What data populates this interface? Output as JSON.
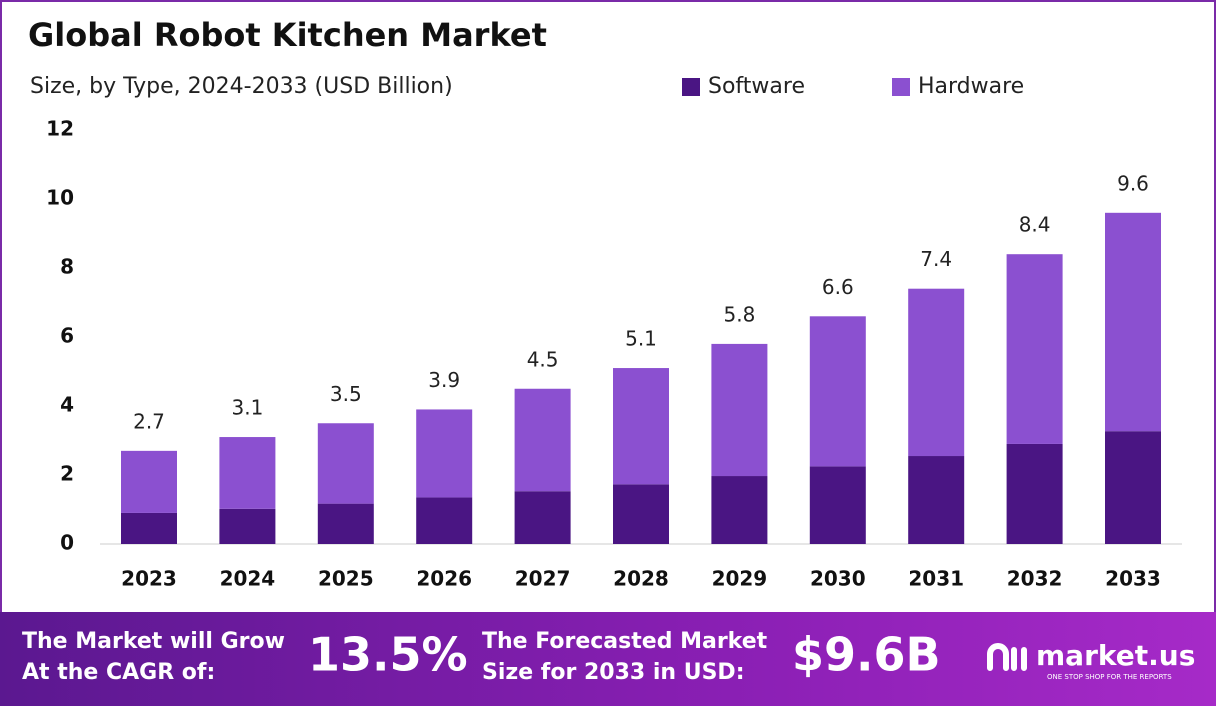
{
  "chart_data": {
    "type": "bar",
    "stacked": true,
    "title": "Global Robot Kitchen Market",
    "subtitle": "Size, by Type, 2024-2033 (USD Billion)",
    "categories": [
      "2023",
      "2024",
      "2025",
      "2026",
      "2027",
      "2028",
      "2029",
      "2030",
      "2031",
      "2032",
      "2033"
    ],
    "series": [
      {
        "name": "Software",
        "color": "#4a1583",
        "values": [
          0.9,
          1.02,
          1.17,
          1.35,
          1.53,
          1.73,
          1.97,
          2.25,
          2.55,
          2.9,
          3.27
        ]
      },
      {
        "name": "Hardware",
        "color": "#8b50d0",
        "values": [
          1.8,
          2.08,
          2.33,
          2.55,
          2.97,
          3.37,
          3.83,
          4.35,
          4.85,
          5.5,
          6.33
        ]
      }
    ],
    "totals": [
      2.7,
      3.1,
      3.5,
      3.9,
      4.5,
      5.1,
      5.8,
      6.6,
      7.4,
      8.4,
      9.6
    ],
    "ylim": [
      0,
      12
    ],
    "yticks": [
      0,
      2,
      4,
      6,
      8,
      10,
      12
    ],
    "grid": false,
    "legend": "top-right"
  },
  "banner": {
    "cagr_label": [
      "The Market will Grow",
      "At the CAGR of:"
    ],
    "cagr": "13.5%",
    "forecast_label": [
      "The Forecasted Market",
      "Size for 2033 in USD:"
    ],
    "forecast": "$9.6B",
    "brand": "market.us",
    "tagline": "ONE STOP SHOP FOR THE REPORTS"
  }
}
